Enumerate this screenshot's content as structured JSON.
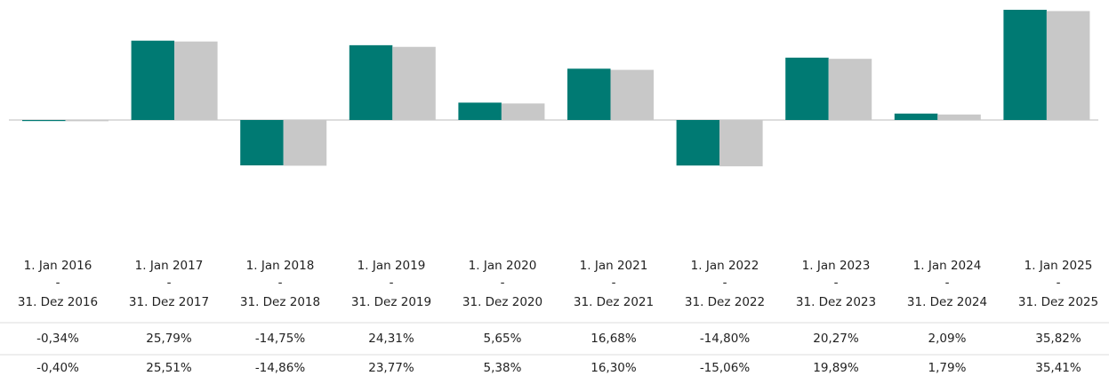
{
  "chart_data": {
    "type": "bar",
    "categories": [
      [
        "1. Jan 2016",
        "-",
        "31. Dez 2016"
      ],
      [
        "1. Jan 2017",
        "-",
        "31. Dez 2017"
      ],
      [
        "1. Jan 2018",
        "-",
        "31. Dez 2018"
      ],
      [
        "1. Jan 2019",
        "-",
        "31. Dez 2019"
      ],
      [
        "1. Jan 2020",
        "-",
        "31. Dez 2020"
      ],
      [
        "1. Jan 2021",
        "-",
        "31. Dez 2021"
      ],
      [
        "1. Jan 2022",
        "-",
        "31. Dez 2022"
      ],
      [
        "1. Jan 2023",
        "-",
        "31. Dez 2023"
      ],
      [
        "1. Jan 2024",
        "-",
        "31. Dez 2024"
      ],
      [
        "1. Jan 2025",
        "-",
        "31. Dez 2025"
      ]
    ],
    "series": [
      {
        "color": "#007a73",
        "values": [
          -0.34,
          25.79,
          -14.75,
          24.31,
          5.65,
          16.68,
          -14.8,
          20.27,
          2.09,
          35.82
        ],
        "value_labels": [
          "-0,34%",
          "25,79%",
          "-14,75%",
          "24,31%",
          "5,65%",
          "16,68%",
          "-14,80%",
          "20,27%",
          "2,09%",
          "35,82%"
        ]
      },
      {
        "color": "#c8c8c8",
        "values": [
          -0.4,
          25.51,
          -14.86,
          23.77,
          5.38,
          16.3,
          -15.06,
          19.89,
          1.79,
          35.41
        ],
        "value_labels": [
          "-0,40%",
          "25,51%",
          "-14,86%",
          "23,77%",
          "5,38%",
          "16,30%",
          "-15,06%",
          "19,89%",
          "1,79%",
          "35,41%"
        ]
      }
    ],
    "ylim": [
      -36,
      36
    ]
  }
}
